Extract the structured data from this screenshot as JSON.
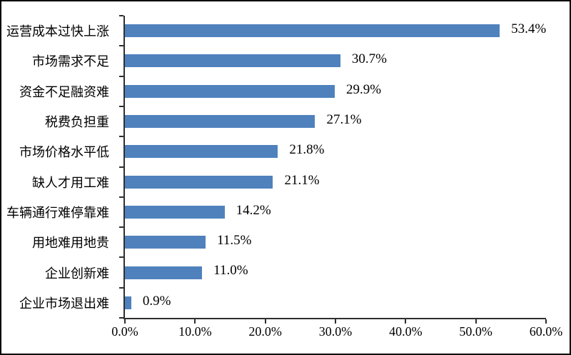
{
  "chart_data": {
    "type": "bar",
    "orientation": "horizontal",
    "title": "",
    "xlabel": "",
    "ylabel": "",
    "xlim": [
      0,
      60
    ],
    "grid": false,
    "legend_position": "none",
    "bar_color": "#4f81bd",
    "axis_color": "#2f2f2f",
    "categories": [
      "运营成本过快上涨",
      "市场需求不足",
      "资金不足融资难",
      "税费负担重",
      "市场价格水平低",
      "缺人才用工难",
      "车辆通行难停靠难",
      "用地难用地贵",
      "企业创新难",
      "企业市场退出难"
    ],
    "values": [
      53.4,
      30.7,
      29.9,
      27.1,
      21.8,
      21.1,
      14.2,
      11.5,
      11.0,
      0.9
    ],
    "value_labels": [
      "53.4%",
      "30.7%",
      "29.9%",
      "27.1%",
      "21.8%",
      "21.1%",
      "14.2%",
      "11.5%",
      "11.0%",
      "0.9%"
    ],
    "x_tick_labels": [
      "0.0%",
      "10.0%",
      "20.0%",
      "30.0%",
      "40.0%",
      "50.0%",
      "60.0%"
    ],
    "x_tick_values": [
      0,
      10,
      20,
      30,
      40,
      50,
      60
    ]
  }
}
